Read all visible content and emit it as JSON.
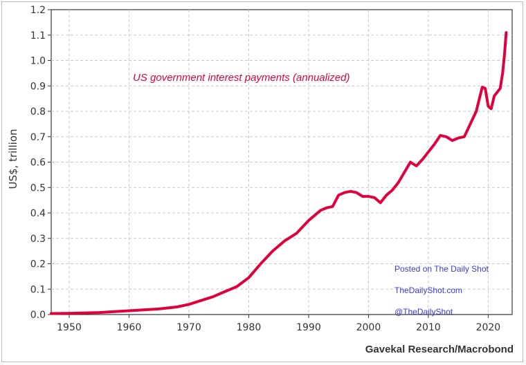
{
  "chart_data": {
    "type": "line",
    "title": "US government interest payments (annualized)",
    "ylabel": "US$, trillion",
    "xlabel": "",
    "source": "Gavekal Research/Macrobond",
    "watermark": [
      "Posted on The Daily Shot",
      "TheDailyShot.com",
      "@TheDailyShot"
    ],
    "xlim": [
      1947,
      2024
    ],
    "ylim": [
      0,
      1.2
    ],
    "x_ticks": [
      "1950",
      "1960",
      "1970",
      "1980",
      "1990",
      "2000",
      "2010",
      "2020"
    ],
    "y_ticks": [
      "0.0",
      "0.1",
      "0.2",
      "0.3",
      "0.4",
      "0.5",
      "0.6",
      "0.7",
      "0.8",
      "0.9",
      "1.0",
      "1.1",
      "1.2"
    ],
    "grid": true,
    "line_color": "#e0003c",
    "series": [
      {
        "x": [
          1947,
          1950,
          1955,
          1960,
          1965,
          1968,
          1970,
          1972,
          1974,
          1976,
          1978,
          1980,
          1982,
          1984,
          1986,
          1988,
          1990,
          1992,
          1993,
          1994,
          1995,
          1996,
          1997,
          1998,
          1999,
          2000,
          2001,
          2002,
          2003,
          2004,
          2005,
          2006,
          2007,
          2008,
          2009,
          2010,
          2011,
          2012,
          2013,
          2014,
          2015,
          2016,
          2017,
          2018,
          2019,
          2019.5,
          2020,
          2020.5,
          2021,
          2021.5,
          2022,
          2022.4,
          2022.7,
          2023
        ],
        "values": [
          0.004,
          0.005,
          0.008,
          0.015,
          0.022,
          0.03,
          0.04,
          0.055,
          0.07,
          0.09,
          0.11,
          0.145,
          0.2,
          0.25,
          0.29,
          0.32,
          0.37,
          0.41,
          0.42,
          0.425,
          0.47,
          0.48,
          0.485,
          0.48,
          0.465,
          0.465,
          0.46,
          0.44,
          0.47,
          0.49,
          0.52,
          0.56,
          0.6,
          0.585,
          0.61,
          0.64,
          0.67,
          0.705,
          0.7,
          0.685,
          0.695,
          0.7,
          0.75,
          0.8,
          0.895,
          0.89,
          0.82,
          0.81,
          0.86,
          0.875,
          0.89,
          0.95,
          1.02,
          1.11
        ]
      }
    ]
  }
}
